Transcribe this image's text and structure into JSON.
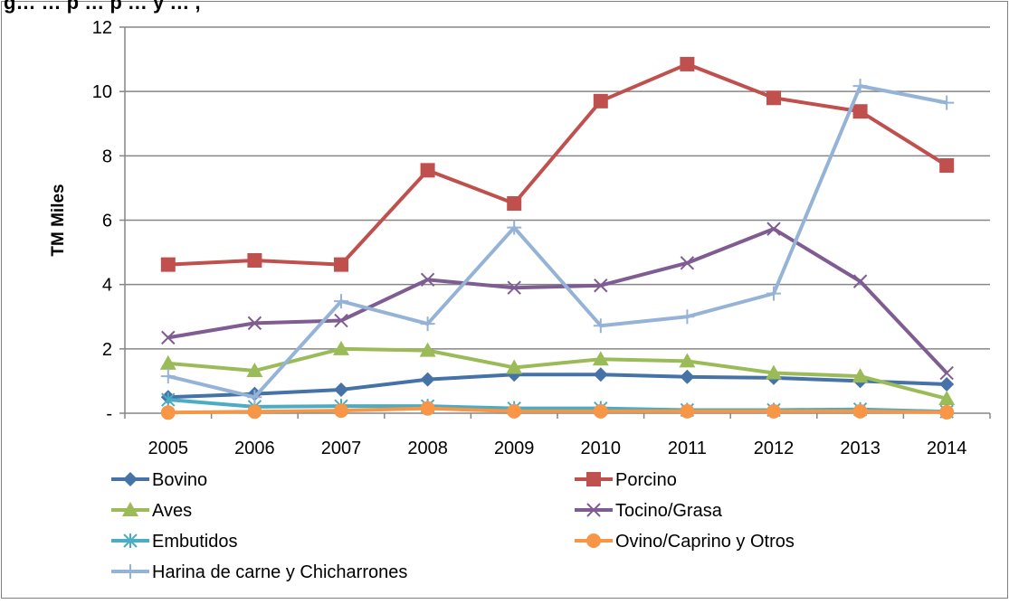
{
  "chart_data": {
    "type": "line",
    "title": "",
    "title_fragment": "g… … p … p … y … ,",
    "xlabel": "",
    "ylabel": "TM Miles",
    "categories": [
      "2005",
      "2006",
      "2007",
      "2008",
      "2009",
      "2010",
      "2011",
      "2012",
      "2013",
      "2014"
    ],
    "ylim": [
      0,
      12
    ],
    "yticks": [
      0,
      2,
      4,
      6,
      8,
      10,
      12
    ],
    "ytick_labels": [
      "-",
      "2",
      "4",
      "6",
      "8",
      "10",
      "12"
    ],
    "grid": true,
    "legend_position": "bottom",
    "series": [
      {
        "name": "Bovino",
        "color": "#4572A7",
        "marker": "diamond",
        "values": [
          0.5,
          0.6,
          0.73,
          1.05,
          1.2,
          1.2,
          1.13,
          1.1,
          1.0,
          0.9
        ]
      },
      {
        "name": "Porcino",
        "color": "#C0504D",
        "marker": "square",
        "values": [
          4.62,
          4.75,
          4.62,
          7.55,
          6.52,
          9.7,
          10.85,
          9.8,
          9.38,
          7.7
        ]
      },
      {
        "name": "Aves",
        "color": "#9BBB59",
        "marker": "triangle",
        "values": [
          1.55,
          1.32,
          2.0,
          1.95,
          1.42,
          1.68,
          1.62,
          1.25,
          1.15,
          0.45
        ]
      },
      {
        "name": "Tocino/Grasa",
        "color": "#7F5C91",
        "marker": "x",
        "values": [
          2.35,
          2.8,
          2.88,
          4.15,
          3.9,
          3.97,
          4.67,
          5.73,
          4.1,
          1.25
        ]
      },
      {
        "name": "Embutidos",
        "color": "#4BACC6",
        "marker": "asterisk",
        "values": [
          0.42,
          0.2,
          0.22,
          0.22,
          0.15,
          0.15,
          0.1,
          0.1,
          0.12,
          0.05
        ]
      },
      {
        "name": "Ovino/Caprino y Otros",
        "color": "#F79646",
        "marker": "circle",
        "values": [
          0.02,
          0.05,
          0.08,
          0.15,
          0.06,
          0.06,
          0.06,
          0.06,
          0.06,
          0.03
        ]
      },
      {
        "name": "Harina de carne y Chicharrones",
        "color": "#95B3D7",
        "marker": "plus",
        "values": [
          1.15,
          0.5,
          3.48,
          2.78,
          5.77,
          2.72,
          3.0,
          3.72,
          10.17,
          9.65
        ]
      }
    ]
  }
}
